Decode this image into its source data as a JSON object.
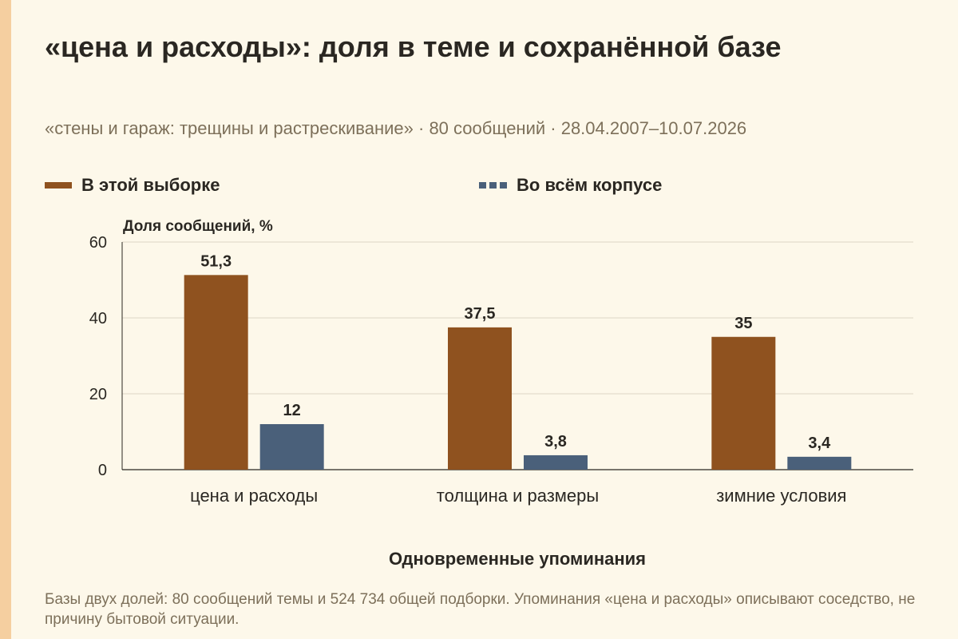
{
  "header": {
    "title": "«цена и расходы»: доля в теме и сохранённой базе",
    "subtitle": "«стены и гараж: трещины и растрескивание» · 80 сообщений · 28.04.2007–10.07.2026"
  },
  "footnote": "Базы двух долей: 80 сообщений темы и 524 734 общей подборки. Упоминания «цена и расходы» описывают соседство, не причину бытовой ситуации.",
  "colors": {
    "sample": "#8f521f",
    "corpus": "#4a607a",
    "accent_strip": "#f5cfa0",
    "grid": "#ddd6c6",
    "axis": "#2a2722"
  },
  "chart_data": {
    "type": "bar",
    "title": "«цена и расходы»: доля в теме и сохранённой базе",
    "xlabel": "Одновременные упоминания",
    "ylabel": "Доля сообщений, %",
    "categories": [
      "цена и расходы",
      "толщина и размеры",
      "зимние условия"
    ],
    "series": [
      {
        "name": "В этой выборке",
        "values": [
          51.3,
          37.5,
          35
        ],
        "labels": [
          "51,3",
          "37,5",
          "35"
        ]
      },
      {
        "name": "Во всём корпусе",
        "values": [
          12,
          3.8,
          3.4
        ],
        "labels": [
          "12",
          "3,8",
          "3,4"
        ]
      }
    ],
    "ylim": [
      0,
      60
    ],
    "yticks": [
      0,
      20,
      40,
      60
    ],
    "grid": true,
    "legend": "top-left"
  }
}
